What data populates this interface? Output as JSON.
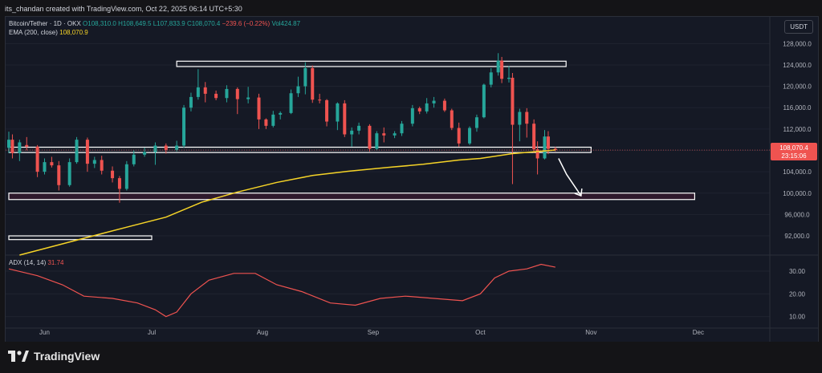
{
  "header": {
    "text": "its_chandan created with TradingView.com, Oct 22, 2025 06:14 UTC+5:30"
  },
  "legend": {
    "pair": "Bitcoin/Tether · 1D · OKX",
    "open": "O108,310.0",
    "high": "H108,649.5",
    "low": "L107,833.9",
    "close": "C108,070.4",
    "change": "−239.6 (−0.22%)",
    "vol": "Vol424.87",
    "ema_label": "EMA (200, close)",
    "ema_value": "108,070.9"
  },
  "currency_badge": "USDT",
  "price_tag": {
    "value": "108,070.4",
    "countdown": "23:15:06"
  },
  "adx_legend": {
    "label": "ADX (14, 14)",
    "value": "31.74"
  },
  "footer": {
    "brand": "TradingView"
  },
  "colors": {
    "up": "#26a69a",
    "down": "#ef5350",
    "ema": "#f5d327",
    "adx": "#ef5350",
    "zone": "#ffffff",
    "pink_zone": "#e91e63"
  },
  "chart_data": {
    "type": "candlestick",
    "title": "Bitcoin/Tether · 1D · OKX",
    "y_axis": {
      "ticks": [
        "128,000.0",
        "124,000.0",
        "120,000.0",
        "116,000.0",
        "112,000.0",
        "108,000.0",
        "104,000.0",
        "100,000.0",
        "96,000.0",
        "92,000.0"
      ],
      "range": [
        88700,
        130000
      ]
    },
    "x_axis": {
      "labels": [
        "Jun",
        "Jul",
        "Aug",
        "Sep",
        "Oct",
        "Nov",
        "Dec"
      ]
    },
    "adx_axis": {
      "ticks": [
        "30.00",
        "20.00",
        "10.00"
      ],
      "range": [
        6,
        36
      ]
    },
    "zones": [
      {
        "name": "resistance-124k",
        "low": 123700,
        "high": 124700,
        "from": "Jul 8",
        "to": "Oct 25"
      },
      {
        "name": "support-108k",
        "low": 107600,
        "high": 108600,
        "from": "May 22",
        "to": "Nov 1"
      },
      {
        "name": "support-99.5k",
        "low": 98800,
        "high": 100000,
        "from": "May 22",
        "to": "Nov 30"
      },
      {
        "name": "support-91.5k",
        "low": 91300,
        "high": 92000,
        "from": "May 22",
        "to": "Jul 1"
      }
    ],
    "projection": {
      "from_price": 106500,
      "to_price": 99500
    },
    "ema_200": [
      [
        "May 25",
        88400
      ],
      [
        "Jun 10",
        91200
      ],
      [
        "Jun 25",
        93800
      ],
      [
        "Jul 5",
        95500
      ],
      [
        "Jul 15",
        98300
      ],
      [
        "Jul 25",
        100200
      ],
      [
        "Aug 5",
        102000
      ],
      [
        "Aug 15",
        103300
      ],
      [
        "Aug 25",
        104100
      ],
      [
        "Sep 5",
        104800
      ],
      [
        "Sep 15",
        105400
      ],
      [
        "Sep 25",
        106200
      ],
      [
        "Oct 1",
        106500
      ],
      [
        "Oct 10",
        107400
      ],
      [
        "Oct 22",
        108070
      ]
    ],
    "adx": [
      [
        "May 22",
        31
      ],
      [
        "May 30",
        28
      ],
      [
        "Jun 6",
        24
      ],
      [
        "Jun 12",
        19
      ],
      [
        "Jun 20",
        18
      ],
      [
        "Jun 27",
        16
      ],
      [
        "Jul 2",
        13
      ],
      [
        "Jul 5",
        10
      ],
      [
        "Jul 8",
        12
      ],
      [
        "Jul 12",
        20
      ],
      [
        "Jul 17",
        26
      ],
      [
        "Jul 24",
        29
      ],
      [
        "Jul 30",
        29
      ],
      [
        "Aug 5",
        24
      ],
      [
        "Aug 12",
        21
      ],
      [
        "Aug 20",
        16
      ],
      [
        "Aug 27",
        15
      ],
      [
        "Sep 3",
        18
      ],
      [
        "Sep 10",
        19
      ],
      [
        "Sep 18",
        18
      ],
      [
        "Sep 26",
        17
      ],
      [
        "Oct 1",
        20
      ],
      [
        "Oct 5",
        27
      ],
      [
        "Oct 9",
        30
      ],
      [
        "Oct 14",
        31
      ],
      [
        "Oct 18",
        33
      ],
      [
        "Oct 22",
        31.74
      ]
    ],
    "candles": [
      [
        "May 22",
        108500,
        111500,
        107500,
        110000
      ],
      [
        "May 23",
        110000,
        111000,
        106500,
        107500
      ],
      [
        "May 25",
        107500,
        110000,
        106000,
        109500
      ],
      [
        "May 27",
        109000,
        110500,
        108000,
        108700
      ],
      [
        "May 30",
        108700,
        109000,
        103000,
        104000
      ],
      [
        "Jun 1",
        104000,
        106500,
        103500,
        105800
      ],
      [
        "Jun 3",
        105800,
        106800,
        104800,
        105200
      ],
      [
        "Jun 5",
        105200,
        106000,
        100500,
        101500
      ],
      [
        "Jun 8",
        101500,
        106500,
        101200,
        105800
      ],
      [
        "Jun 10",
        105800,
        110500,
        105500,
        110000
      ],
      [
        "Jun 13",
        110000,
        110400,
        104000,
        105500
      ],
      [
        "Jun 15",
        105500,
        106800,
        104700,
        106200
      ],
      [
        "Jun 17",
        106200,
        107000,
        103500,
        104200
      ],
      [
        "Jun 20",
        104200,
        105000,
        102000,
        102800
      ],
      [
        "Jun 22",
        102800,
        103200,
        98200,
        100800
      ],
      [
        "Jun 24",
        100800,
        106000,
        100500,
        105400
      ],
      [
        "Jun 26",
        105400,
        108000,
        105000,
        107200
      ],
      [
        "Jun 29",
        107200,
        108500,
        106800,
        107700
      ],
      [
        "Jul 2",
        107700,
        109500,
        105300,
        108900
      ],
      [
        "Jul 5",
        108900,
        109300,
        107400,
        108100
      ],
      [
        "Jul 8",
        108100,
        109800,
        107800,
        108900
      ],
      [
        "Jul 10",
        108900,
        116500,
        108500,
        116000
      ],
      [
        "Jul 12",
        116000,
        118800,
        115300,
        118000
      ],
      [
        "Jul 14",
        118000,
        123200,
        117500,
        119800
      ],
      [
        "Jul 16",
        119800,
        120800,
        117000,
        118600
      ],
      [
        "Jul 19",
        118600,
        119200,
        117400,
        117800
      ],
      [
        "Jul 22",
        117800,
        120200,
        117000,
        119500
      ],
      [
        "Jul 25",
        119500,
        119800,
        114800,
        117600
      ],
      [
        "Jul 28",
        117600,
        119900,
        116800,
        117900
      ],
      [
        "Jul 31",
        117900,
        118600,
        112000,
        113800
      ],
      [
        "Aug 2",
        113800,
        114000,
        112000,
        112600
      ],
      [
        "Aug 4",
        112600,
        115400,
        112300,
        114700
      ],
      [
        "Aug 6",
        114700,
        115300,
        113800,
        115000
      ],
      [
        "Aug 9",
        115000,
        119400,
        114800,
        118700
      ],
      [
        "Aug 11",
        118700,
        121800,
        118000,
        120000
      ],
      [
        "Aug 13",
        120000,
        124500,
        118500,
        123400
      ],
      [
        "Aug 15",
        123400,
        123900,
        116900,
        117500
      ],
      [
        "Aug 17",
        117500,
        118600,
        116800,
        117400
      ],
      [
        "Aug 19",
        117400,
        117600,
        112500,
        113400
      ],
      [
        "Aug 22",
        113400,
        117000,
        111800,
        116800
      ],
      [
        "Aug 24",
        116800,
        117400,
        110500,
        111000
      ],
      [
        "Aug 26",
        111000,
        112300,
        108700,
        111700
      ],
      [
        "Aug 28",
        111700,
        113200,
        111000,
        112600
      ],
      [
        "Aug 31",
        112600,
        112900,
        107800,
        108300
      ],
      [
        "Sep 2",
        108300,
        111600,
        108000,
        111200
      ],
      [
        "Sep 4",
        111200,
        112300,
        109500,
        110800
      ],
      [
        "Sep 7",
        110800,
        111600,
        110300,
        111200
      ],
      [
        "Sep 9",
        111200,
        113500,
        110700,
        113000
      ],
      [
        "Sep 12",
        113000,
        116500,
        112500,
        115900
      ],
      [
        "Sep 14",
        115900,
        116200,
        114800,
        115300
      ],
      [
        "Sep 16",
        115300,
        117800,
        114900,
        116800
      ],
      [
        "Sep 18",
        116800,
        118000,
        116000,
        117300
      ],
      [
        "Sep 21",
        117300,
        117700,
        115200,
        115500
      ],
      [
        "Sep 23",
        115500,
        115800,
        111800,
        112200
      ],
      [
        "Sep 25",
        112200,
        113200,
        108700,
        109300
      ],
      [
        "Sep 28",
        109300,
        112500,
        109000,
        112200
      ],
      [
        "Sep 30",
        112200,
        114700,
        111500,
        114200
      ],
      [
        "Oct 2",
        114200,
        120500,
        114000,
        120300
      ],
      [
        "Oct 4",
        120300,
        123400,
        119800,
        122600
      ],
      [
        "Oct 6",
        122600,
        126200,
        122000,
        124800
      ],
      [
        "Oct 7",
        124800,
        125500,
        120600,
        121400
      ],
      [
        "Oct 9",
        121400,
        123800,
        120700,
        121600
      ],
      [
        "Oct 10",
        121600,
        122500,
        101700,
        112800
      ],
      [
        "Oct 12",
        112800,
        115800,
        109700,
        115200
      ],
      [
        "Oct 14",
        115200,
        115900,
        110400,
        113000
      ],
      [
        "Oct 16",
        113000,
        113800,
        107500,
        108200
      ],
      [
        "Oct 17",
        108200,
        109700,
        103500,
        106500
      ],
      [
        "Oct 19",
        106500,
        111800,
        106300,
        110600
      ],
      [
        "Oct 20",
        110600,
        111600,
        107300,
        108300
      ],
      [
        "Oct 22",
        108300,
        108650,
        107830,
        108070
      ]
    ]
  }
}
